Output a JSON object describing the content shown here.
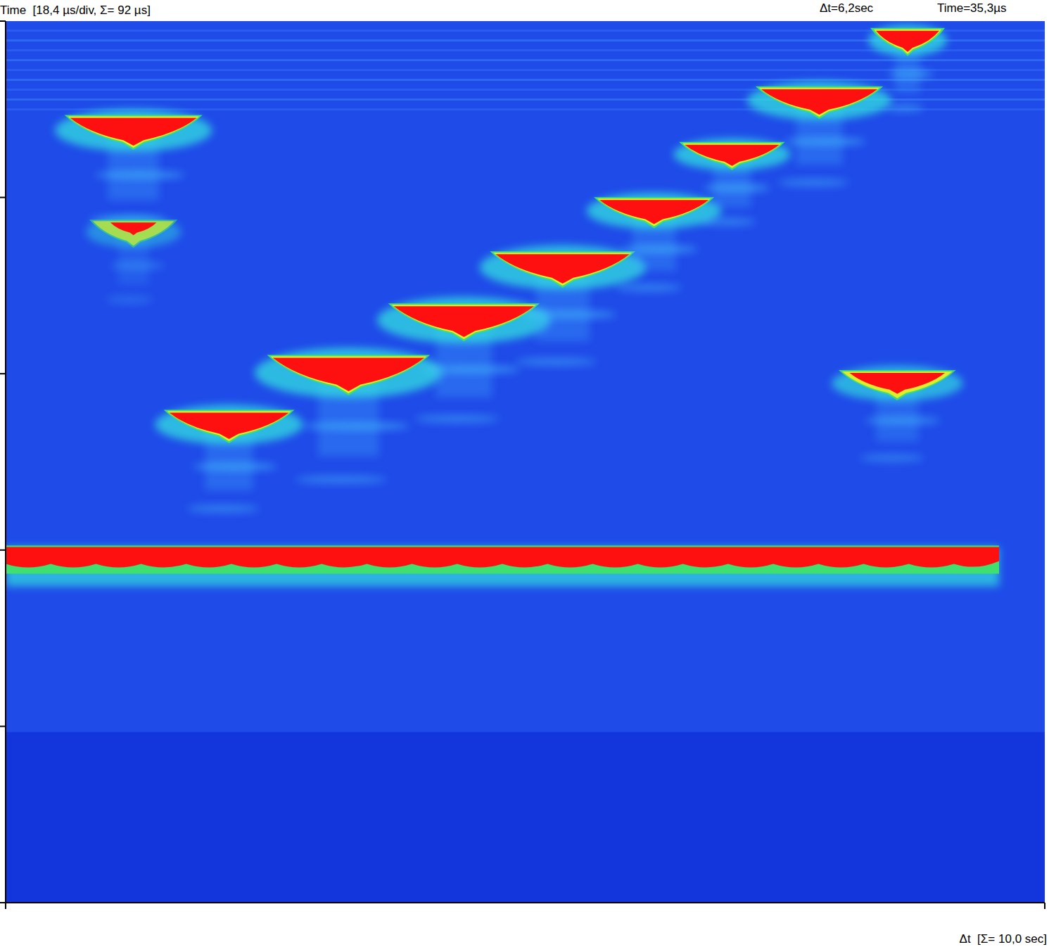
{
  "chart_data": {
    "type": "echogram",
    "title": "Time  [18,4 µs/div, Σ= 92 µs]",
    "x_label": "Δt  [Σ= 10,0 sec]",
    "annotations": [
      "Δt=6,2sec",
      "Time=35,3µs"
    ],
    "xlim": [
      0,
      10
    ],
    "xticks": [
      0,
      10
    ],
    "ylim": [
      0,
      92
    ],
    "yticks": [
      0,
      18.4,
      36.8,
      55.2,
      73.6,
      92
    ],
    "tick_labels": false,
    "echoes": [
      {
        "t": 1.23,
        "time": 11.4,
        "duration": 1.22,
        "intensity": 1.0
      },
      {
        "t": 1.23,
        "time": 22.0,
        "duration": 0.74,
        "intensity": 0.6
      },
      {
        "t": 2.15,
        "time": 42.1,
        "duration": 1.15,
        "intensity": 1.0
      },
      {
        "t": 3.3,
        "time": 36.7,
        "duration": 1.46,
        "intensity": 1.0
      },
      {
        "t": 4.41,
        "time": 31.2,
        "duration": 1.35,
        "intensity": 1.0
      },
      {
        "t": 5.36,
        "time": 25.7,
        "duration": 1.29,
        "intensity": 1.0
      },
      {
        "t": 6.24,
        "time": 19.8,
        "duration": 1.05,
        "intensity": 1.0
      },
      {
        "t": 6.99,
        "time": 13.9,
        "duration": 0.91,
        "intensity": 1.0
      },
      {
        "t": 7.83,
        "time": 8.3,
        "duration": 1.12,
        "intensity": 1.0
      },
      {
        "t": 8.68,
        "time": 2.0,
        "duration": 0.61,
        "intensity": 1.0
      },
      {
        "t": 8.58,
        "time": 37.8,
        "duration": 1.02,
        "intensity": 0.9
      }
    ],
    "band": {
      "t_start": 0,
      "t_end": 9.56,
      "time": 56.2,
      "intensity": 1.0
    },
    "echo_range_end": 74.2
  }
}
